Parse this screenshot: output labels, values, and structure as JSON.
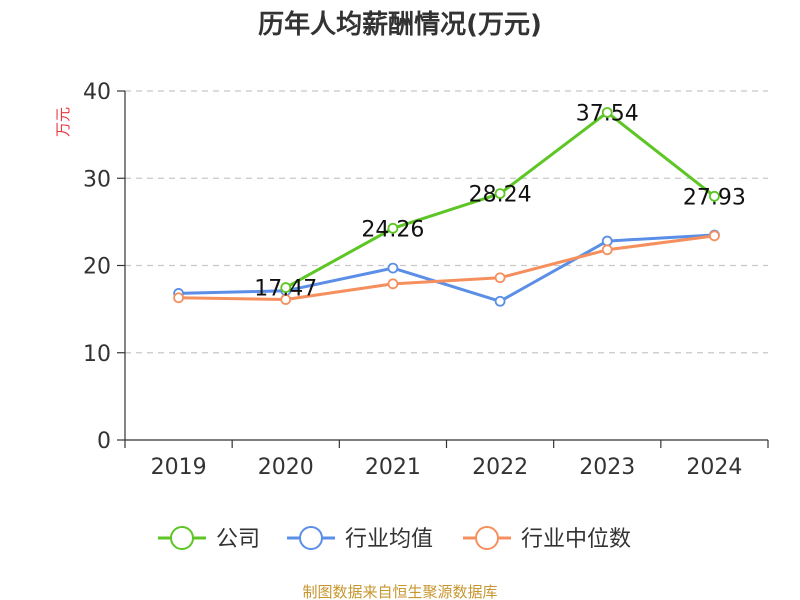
{
  "chart_data": {
    "type": "line",
    "title": "历年人均薪酬情况(万元)",
    "ylabel": "万元",
    "xlabel": "",
    "categories": [
      "2019",
      "2020",
      "2021",
      "2022",
      "2023",
      "2024"
    ],
    "ylim": [
      0,
      40
    ],
    "yticks": [
      0,
      10,
      20,
      30,
      40
    ],
    "grid": true,
    "legend_position": "bottom",
    "series": [
      {
        "name": "公司",
        "color": "#5dc625",
        "values": [
          null,
          17.47,
          24.26,
          28.24,
          37.54,
          27.93
        ],
        "labels": [
          "",
          "17.47",
          "24.26",
          "28.24",
          "37.54",
          "27.93"
        ]
      },
      {
        "name": "行业均值",
        "color": "#5b8ee6",
        "values": [
          16.8,
          17.1,
          19.7,
          15.9,
          22.8,
          23.5
        ]
      },
      {
        "name": "行业中位数",
        "color": "#f5905e",
        "values": [
          16.3,
          16.1,
          17.9,
          18.6,
          21.8,
          23.4
        ]
      }
    ]
  },
  "source": "制图数据来自恒生聚源数据库"
}
